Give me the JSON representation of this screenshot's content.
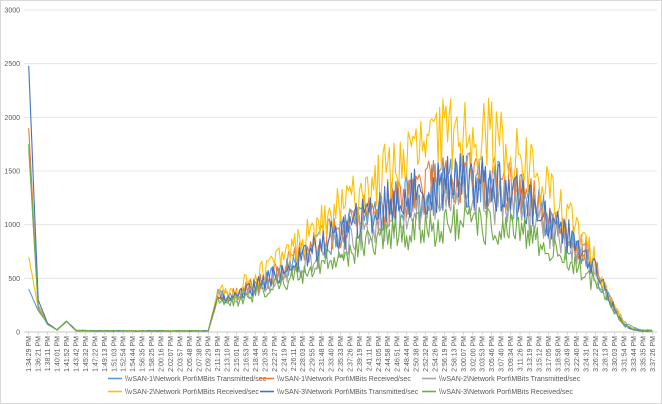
{
  "chart_data": {
    "type": "line",
    "title": "",
    "xlabel": "",
    "ylabel": "",
    "ylim": [
      0,
      3000
    ],
    "yticks": [
      0,
      500,
      1000,
      1500,
      2000,
      2500,
      3000
    ],
    "grid": "horizontal",
    "legend_position": "bottom",
    "x": [
      "1:34:29 PM",
      "1:36:21 PM",
      "1:38:11 PM",
      "1:40:01 PM",
      "1:41:52 PM",
      "1:43:42 PM",
      "1:45:32 PM",
      "1:47:22 PM",
      "1:49:13 PM",
      "1:51:03 PM",
      "1:52:54 PM",
      "1:54:44 PM",
      "1:56:35 PM",
      "1:58:25 PM",
      "2:00:16 PM",
      "2:02:07 PM",
      "2:03:57 PM",
      "2:05:48 PM",
      "2:07:38 PM",
      "2:09:29 PM",
      "2:11:19 PM",
      "2:13:10 PM",
      "2:15:01 PM",
      "2:16:53 PM",
      "2:18:44 PM",
      "2:20:35 PM",
      "2:22:27 PM",
      "2:24:19 PM",
      "2:26:11 PM",
      "2:28:03 PM",
      "2:29:55 PM",
      "2:31:48 PM",
      "2:33:40 PM",
      "2:35:33 PM",
      "2:37:26 PM",
      "2:39:19 PM",
      "2:41:11 PM",
      "2:43:05 PM",
      "2:44:58 PM",
      "2:46:51 PM",
      "2:48:44 PM",
      "2:50:38 PM",
      "2:52:32 PM",
      "2:54:26 PM",
      "2:56:19 PM",
      "2:58:13 PM",
      "3:00:07 PM",
      "3:02:00 PM",
      "3:03:53 PM",
      "3:05:46 PM",
      "3:07:40 PM",
      "3:09:34 PM",
      "3:11:26 PM",
      "3:13:19 PM",
      "3:15:12 PM",
      "3:17:05 PM",
      "3:18:58 PM",
      "3:20:49 PM",
      "3:22:40 PM",
      "3:24:31 PM",
      "3:26:22 PM",
      "3:28:13 PM",
      "3:30:03 PM",
      "3:31:54 PM",
      "3:33:44 PM",
      "3:35:35 PM",
      "3:37:26 PM"
    ],
    "series": [
      {
        "name": "\\\\vSAN-1\\Network Port\\MBits Transmitted/sec",
        "color": "#5b9bd5",
        "values": [
          400,
          200,
          80,
          20,
          100,
          15,
          12,
          10,
          10,
          10,
          10,
          10,
          10,
          10,
          10,
          10,
          10,
          10,
          10,
          10,
          350,
          300,
          330,
          380,
          430,
          470,
          520,
          590,
          640,
          700,
          760,
          830,
          890,
          940,
          990,
          1040,
          1080,
          1130,
          1170,
          1210,
          1250,
          1290,
          1310,
          1340,
          1370,
          1390,
          1400,
          1400,
          1390,
          1370,
          1330,
          1290,
          1250,
          1200,
          1120,
          1050,
          980,
          900,
          820,
          720,
          560,
          380,
          200,
          60,
          20,
          10,
          10
        ]
      },
      {
        "name": "\\\\vSAN-1\\Network Port\\MBits Received/sec",
        "color": "#ed7d31",
        "values": [
          1900,
          250,
          80,
          20,
          100,
          15,
          12,
          10,
          10,
          10,
          10,
          10,
          10,
          10,
          10,
          10,
          10,
          10,
          10,
          10,
          360,
          320,
          350,
          400,
          450,
          500,
          550,
          610,
          660,
          720,
          780,
          840,
          900,
          950,
          1000,
          1050,
          1100,
          1150,
          1200,
          1250,
          1290,
          1330,
          1350,
          1380,
          1400,
          1420,
          1430,
          1430,
          1420,
          1400,
          1360,
          1320,
          1280,
          1230,
          1150,
          1080,
          1010,
          930,
          850,
          750,
          590,
          400,
          210,
          70,
          20,
          10,
          10
        ]
      },
      {
        "name": "\\\\vSAN-2\\Network Port\\MBits Transmitted/sec",
        "color": "#a5a5a5",
        "values": [
          1700,
          240,
          70,
          20,
          100,
          15,
          12,
          10,
          10,
          10,
          10,
          10,
          10,
          10,
          10,
          10,
          10,
          10,
          10,
          10,
          340,
          300,
          320,
          360,
          400,
          440,
          480,
          530,
          580,
          630,
          680,
          730,
          780,
          830,
          880,
          920,
          960,
          1000,
          1040,
          1080,
          1110,
          1140,
          1170,
          1200,
          1220,
          1240,
          1250,
          1250,
          1240,
          1220,
          1190,
          1160,
          1120,
          1080,
          1010,
          950,
          890,
          820,
          760,
          680,
          540,
          380,
          220,
          90,
          40,
          20,
          15
        ]
      },
      {
        "name": "\\\\vSAN-2\\Network Port\\MBits Received/sec",
        "color": "#ffc000",
        "values": [
          700,
          230,
          80,
          20,
          100,
          15,
          12,
          10,
          10,
          10,
          10,
          10,
          10,
          10,
          10,
          10,
          10,
          10,
          10,
          10,
          380,
          360,
          400,
          460,
          520,
          580,
          650,
          720,
          790,
          860,
          930,
          1000,
          1080,
          1150,
          1220,
          1290,
          1360,
          1430,
          1500,
          1560,
          1620,
          1680,
          1740,
          1790,
          1830,
          1860,
          1880,
          1880,
          1860,
          1820,
          1760,
          1690,
          1610,
          1530,
          1420,
          1310,
          1200,
          1080,
          960,
          820,
          640,
          440,
          240,
          80,
          20,
          10,
          10
        ]
      },
      {
        "name": "\\\\vSAN-3\\Network Port\\MBits Transmitted/sec",
        "color": "#4472c4",
        "values": [
          2480,
          300,
          80,
          20,
          100,
          15,
          12,
          10,
          10,
          10,
          10,
          10,
          10,
          10,
          10,
          10,
          10,
          10,
          10,
          10,
          330,
          290,
          320,
          370,
          420,
          470,
          520,
          580,
          630,
          690,
          750,
          810,
          870,
          920,
          980,
          1030,
          1080,
          1130,
          1180,
          1220,
          1260,
          1290,
          1320,
          1350,
          1380,
          1400,
          1410,
          1410,
          1400,
          1380,
          1340,
          1300,
          1250,
          1200,
          1130,
          1060,
          990,
          910,
          830,
          730,
          570,
          390,
          210,
          70,
          20,
          10,
          10
        ]
      },
      {
        "name": "\\\\vSAN-3\\Network Port\\MBits Received/sec",
        "color": "#70ad47",
        "values": [
          1750,
          220,
          70,
          20,
          100,
          15,
          12,
          10,
          10,
          10,
          10,
          10,
          10,
          10,
          10,
          10,
          10,
          10,
          10,
          10,
          300,
          270,
          290,
          320,
          350,
          390,
          430,
          470,
          510,
          550,
          590,
          630,
          670,
          710,
          750,
          790,
          820,
          850,
          880,
          910,
          930,
          950,
          970,
          980,
          990,
          1000,
          1000,
          1000,
          990,
          980,
          960,
          940,
          910,
          880,
          830,
          780,
          730,
          670,
          610,
          540,
          430,
          310,
          180,
          70,
          30,
          15,
          15
        ]
      }
    ]
  }
}
